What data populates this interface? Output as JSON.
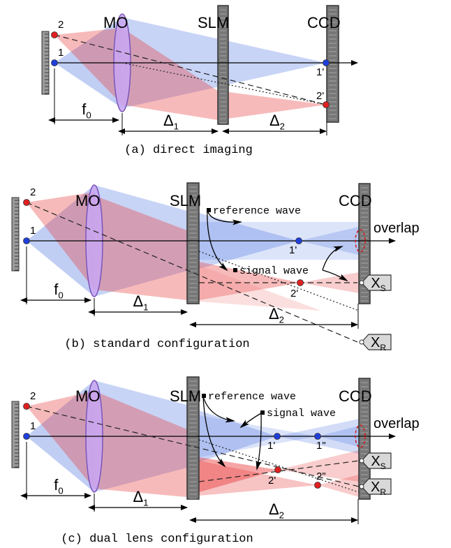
{
  "panels": [
    {
      "caption": "(a) direct imaging",
      "mo": "MO",
      "slm": "SLM",
      "ccd": "CCD",
      "p1": "1",
      "p2": "2",
      "i1": "1'",
      "i2": "2'",
      "f": {
        "main": "f",
        "sub": "0"
      },
      "d1": {
        "main": "Δ",
        "sub": "1"
      },
      "d2": {
        "main": "Δ",
        "sub": "2"
      }
    },
    {
      "caption": "(b) standard configuration",
      "mo": "MO",
      "slm": "SLM",
      "ccd": "CCD",
      "p1": "1",
      "p2": "2",
      "i1": "1'",
      "i2": "2'",
      "ref": "reference wave",
      "sig": "signal wave",
      "overlap": "overlap",
      "xs": {
        "main": "X",
        "sub": "S"
      },
      "xr": {
        "main": "X",
        "sub": "R"
      },
      "f": {
        "main": "f",
        "sub": "0"
      },
      "d1": {
        "main": "Δ",
        "sub": "1"
      },
      "d2": {
        "main": "Δ",
        "sub": "2"
      }
    },
    {
      "caption": "(c) dual lens configuration",
      "mo": "MO",
      "slm": "SLM",
      "ccd": "CCD",
      "p1": "1",
      "p2": "2",
      "i1": "1'",
      "i1b": "1\"",
      "i2": "2'",
      "i2b": "2\"",
      "ref": "reference wave",
      "sig": "signal wave",
      "overlap": "overlap",
      "xs": {
        "main": "X",
        "sub": "S"
      },
      "xr": {
        "main": "X",
        "sub": "R"
      },
      "f": {
        "main": "f",
        "sub": "0"
      },
      "d1": {
        "main": "Δ",
        "sub": "1"
      },
      "d2": {
        "main": "Δ",
        "sub": "2"
      }
    }
  ]
}
